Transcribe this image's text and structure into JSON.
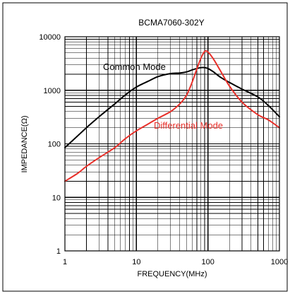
{
  "chart_data": {
    "type": "line",
    "title": "BCMA7060-302Y",
    "xlabel": "FREQUENCY(MHz)",
    "ylabel": "IMPEDANCE(Ω)",
    "x_scale": "log",
    "y_scale": "log",
    "xlim": [
      1,
      1000
    ],
    "ylim": [
      1,
      10000
    ],
    "grid": true,
    "x_ticks": [
      1,
      10,
      100,
      1000
    ],
    "x_tick_labels": [
      "1",
      "10",
      "100",
      "1000"
    ],
    "y_ticks": [
      1,
      10,
      100,
      1000,
      10000
    ],
    "y_tick_labels": [
      "1",
      "10",
      "100",
      "1000",
      "10000"
    ],
    "series": [
      {
        "name": "Common Mode",
        "color": "#000000",
        "x": [
          1,
          1.5,
          2,
          3,
          5,
          7,
          10,
          15,
          20,
          30,
          40,
          50,
          60,
          70,
          80,
          90,
          100,
          120,
          150,
          200,
          300,
          500,
          700,
          1000
        ],
        "y": [
          85,
          140,
          200,
          320,
          560,
          820,
          1150,
          1500,
          1800,
          2050,
          2100,
          2200,
          2400,
          2550,
          2650,
          2650,
          2550,
          2200,
          1750,
          1400,
          1050,
          750,
          520,
          320
        ]
      },
      {
        "name": "Differential Mode",
        "color": "#e8302a",
        "x": [
          1,
          1.5,
          2,
          3,
          5,
          7,
          10,
          15,
          20,
          30,
          40,
          50,
          60,
          70,
          80,
          90,
          100,
          120,
          150,
          200,
          300,
          500,
          700,
          1000
        ],
        "y": [
          20,
          28,
          38,
          55,
          85,
          125,
          175,
          240,
          300,
          400,
          550,
          800,
          1400,
          2500,
          4000,
          5300,
          5200,
          3800,
          2300,
          1200,
          600,
          350,
          280,
          200
        ]
      }
    ],
    "annotations": [
      {
        "text": "Common Mode",
        "series": "Common Mode"
      },
      {
        "text": "Differential Mode",
        "series": "Differential Mode"
      }
    ]
  }
}
